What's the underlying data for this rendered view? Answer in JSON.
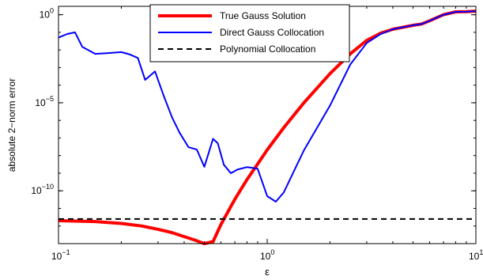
{
  "chart_data": {
    "type": "line",
    "xscale": "log",
    "yscale": "log",
    "xlabel": "ε",
    "ylabel": "absolute 2−norm error",
    "xlim": [
      0.1,
      10
    ],
    "ylim": [
      1e-13,
      3
    ],
    "grid": false,
    "legend_position": "top-center",
    "xticks": [
      {
        "value": 0.1,
        "base": "10",
        "exp": "−1"
      },
      {
        "value": 1,
        "base": "10",
        "exp": "0"
      },
      {
        "value": 10,
        "base": "10",
        "exp": "1"
      }
    ],
    "yticks": [
      {
        "value": 1,
        "base": "10",
        "exp": "0"
      },
      {
        "value": 1e-05,
        "base": "10",
        "exp": "−5"
      },
      {
        "value": 1e-10,
        "base": "10",
        "exp": "−10"
      }
    ],
    "series": [
      {
        "name": "True Gauss Solution",
        "color": "#ff0000",
        "dash": "solid",
        "width": "thick",
        "x": [
          0.1,
          0.15,
          0.2,
          0.25,
          0.3,
          0.35,
          0.4,
          0.45,
          0.5,
          0.55,
          0.6,
          0.7,
          0.8,
          0.9,
          1.0,
          1.2,
          1.5,
          2.0,
          2.5,
          3.0,
          3.5,
          4.0,
          5.0,
          5.5,
          6.0,
          7.0,
          8.0,
          9.0,
          10.0
        ],
        "y": [
          2e-12,
          1.8e-12,
          1.4e-12,
          1e-12,
          6.5e-13,
          4.2e-13,
          2.5e-13,
          1.6e-13,
          1e-13,
          1.3e-13,
          1.2e-12,
          3.3e-11,
          4.3e-10,
          3.3e-09,
          2.1e-08,
          3.8e-07,
          1e-05,
          0.00045,
          0.006,
          0.035,
          0.09,
          0.15,
          0.25,
          0.3,
          0.45,
          1.0,
          1.45,
          1.5,
          1.6
        ]
      },
      {
        "name": "Direct Gauss Collocation",
        "color": "#0000ff",
        "dash": "solid",
        "width": "normal",
        "x": [
          0.1,
          0.11,
          0.12,
          0.13,
          0.15,
          0.17,
          0.2,
          0.22,
          0.24,
          0.26,
          0.29,
          0.32,
          0.35,
          0.38,
          0.42,
          0.46,
          0.5,
          0.55,
          0.58,
          0.62,
          0.67,
          0.72,
          0.8,
          0.9,
          1.0,
          1.1,
          1.2,
          1.5,
          2.0,
          2.5,
          3.0,
          3.5,
          4.0,
          5.0,
          5.5,
          6.0,
          7.0,
          8.0,
          9.0,
          10.0
        ],
        "y": [
          0.05,
          0.08,
          0.1,
          0.015,
          0.006,
          0.0065,
          0.0075,
          0.0055,
          0.0035,
          0.0002,
          0.0006,
          2.3e-05,
          1.5e-06,
          2e-07,
          3e-08,
          2.2e-08,
          2.3e-09,
          9e-08,
          5e-08,
          3e-09,
          1e-09,
          1.6e-09,
          2.2e-09,
          1.8e-09,
          5e-11,
          2.4e-11,
          8e-11,
          2e-08,
          7e-06,
          0.0015,
          0.025,
          0.08,
          0.15,
          0.25,
          0.3,
          0.45,
          1.0,
          1.45,
          1.5,
          1.6
        ]
      },
      {
        "name": "Polynomial Collocation",
        "color": "#000000",
        "dash": "dashed",
        "width": "normal",
        "x": [
          0.1,
          10
        ],
        "y": [
          2.5e-12,
          2.5e-12
        ]
      }
    ]
  }
}
